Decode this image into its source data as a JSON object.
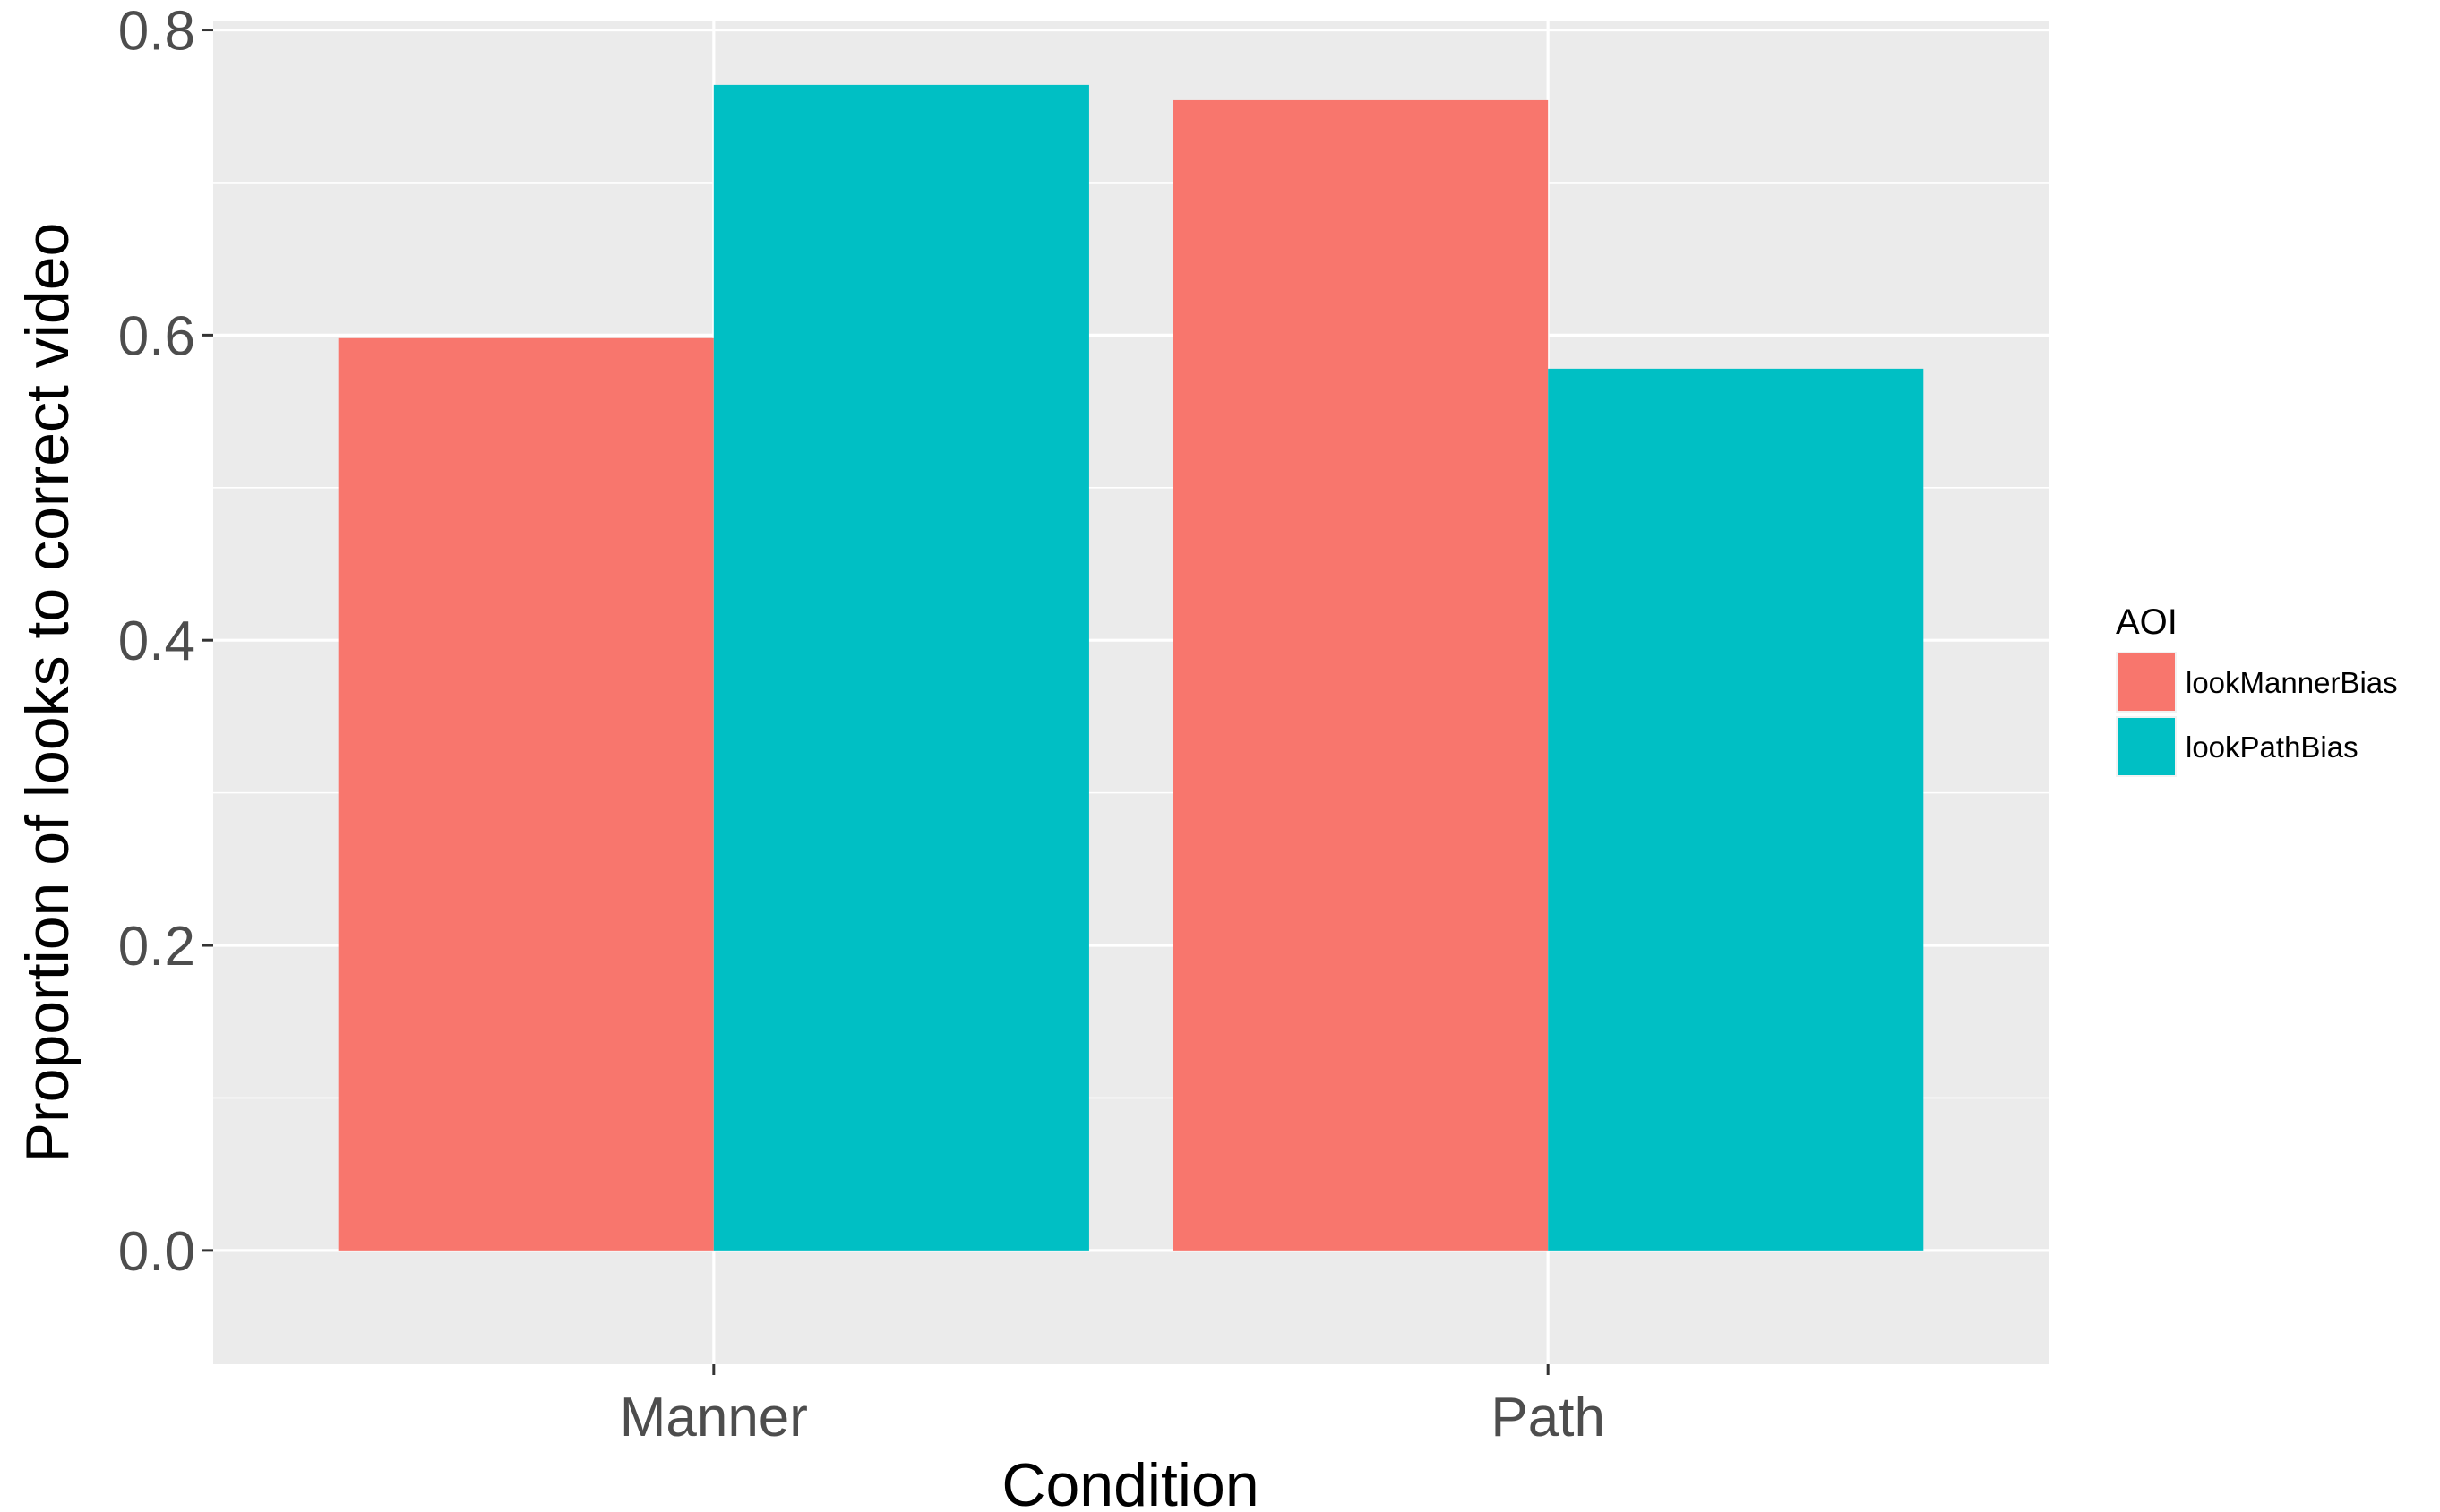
{
  "chart_data": {
    "type": "bar",
    "xlabel": "Condition",
    "ylabel": "Proportion of looks to correct video",
    "categories": [
      "Manner",
      "Path"
    ],
    "series": [
      {
        "name": "lookMannerBias",
        "color": "#F8766D",
        "values": [
          0.598,
          0.754
        ]
      },
      {
        "name": "lookPathBias",
        "color": "#00BFC4",
        "values": [
          0.764,
          0.578
        ]
      }
    ],
    "ylim": [
      -0.0746,
      0.8056
    ],
    "yticks": [
      0.0,
      0.2,
      0.4,
      0.6,
      0.8
    ],
    "ytick_labels": [
      "0.0",
      "0.2",
      "0.4",
      "0.6",
      "0.8"
    ],
    "grid": true,
    "panel_background": "#EBEBEB",
    "grid_color": "#FFFFFF",
    "legend": {
      "title": "AOI",
      "placement": "right",
      "items": [
        "lookMannerBias",
        "lookPathBias"
      ]
    }
  }
}
